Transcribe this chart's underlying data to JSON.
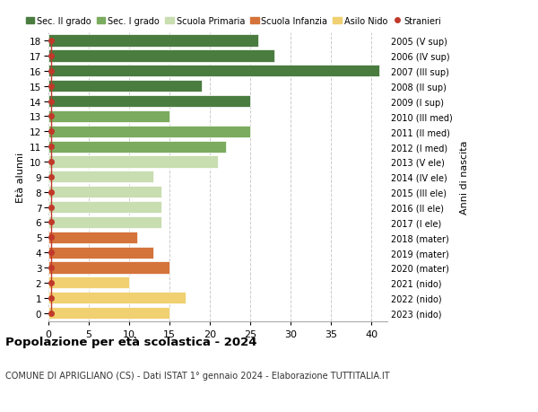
{
  "ages": [
    18,
    17,
    16,
    15,
    14,
    13,
    12,
    11,
    10,
    9,
    8,
    7,
    6,
    5,
    4,
    3,
    2,
    1,
    0
  ],
  "labels_right": [
    "2005 (V sup)",
    "2006 (IV sup)",
    "2007 (III sup)",
    "2008 (II sup)",
    "2009 (I sup)",
    "2010 (III med)",
    "2011 (II med)",
    "2012 (I med)",
    "2013 (V ele)",
    "2014 (IV ele)",
    "2015 (III ele)",
    "2016 (II ele)",
    "2017 (I ele)",
    "2018 (mater)",
    "2019 (mater)",
    "2020 (mater)",
    "2021 (nido)",
    "2022 (nido)",
    "2023 (nido)"
  ],
  "bar_values": [
    26,
    28,
    41,
    19,
    25,
    15,
    25,
    22,
    21,
    13,
    14,
    14,
    14,
    11,
    13,
    15,
    10,
    17,
    15
  ],
  "bar_colors": [
    "#4a7c40",
    "#4a7c40",
    "#4a7c40",
    "#4a7c40",
    "#4a7c40",
    "#7aab5e",
    "#7aab5e",
    "#7aab5e",
    "#c8ddb0",
    "#c8ddb0",
    "#c8ddb0",
    "#c8ddb0",
    "#c8ddb0",
    "#d4733a",
    "#d4733a",
    "#d4733a",
    "#f0d070",
    "#f0d070",
    "#f0d070"
  ],
  "stranieri_color": "#c0392b",
  "legend_labels": [
    "Sec. II grado",
    "Sec. I grado",
    "Scuola Primaria",
    "Scuola Infanzia",
    "Asilo Nido",
    "Stranieri"
  ],
  "legend_colors": [
    "#4a7c40",
    "#7aab5e",
    "#c8ddb0",
    "#d4733a",
    "#f0d070",
    "#c0392b"
  ],
  "ylabel_left": "Età alunni",
  "ylabel_right": "Anni di nascita",
  "title": "Popolazione per età scolastica - 2024",
  "subtitle": "COMUNE DI APRIGLIANO (CS) - Dati ISTAT 1° gennaio 2024 - Elaborazione TUTTITALIA.IT",
  "xlim": [
    0,
    42
  ],
  "xticks": [
    0,
    5,
    10,
    15,
    20,
    25,
    30,
    35,
    40
  ],
  "background_color": "#ffffff",
  "grid_color": "#cccccc"
}
